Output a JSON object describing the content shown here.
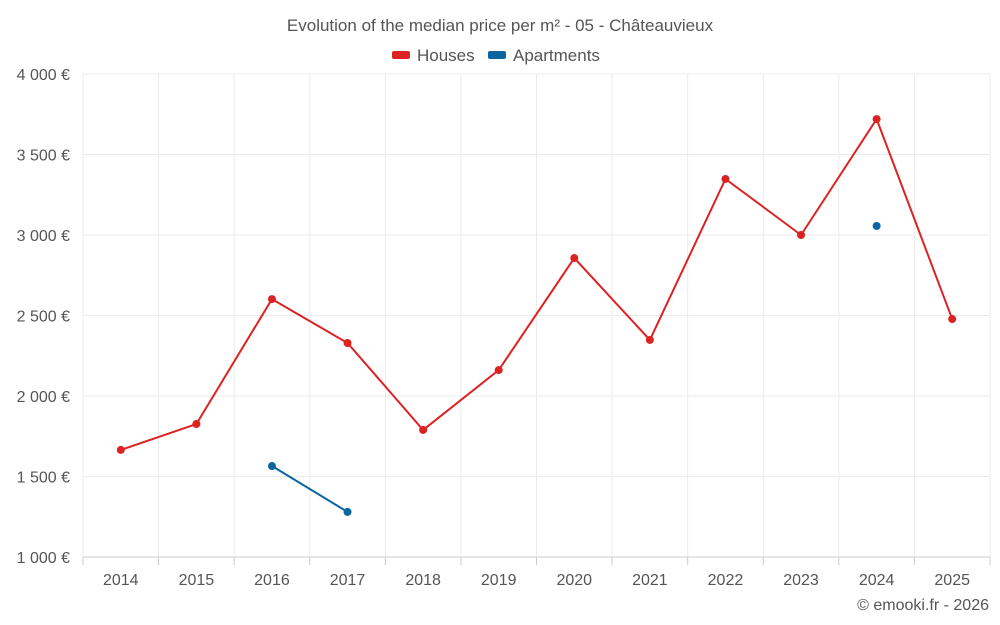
{
  "chart_data": {
    "type": "line",
    "title": "Evolution of the median price per m² - 05 - Châteauvieux",
    "xlabel": "",
    "ylabel": "",
    "categories": [
      "2014",
      "2015",
      "2016",
      "2017",
      "2018",
      "2019",
      "2020",
      "2021",
      "2022",
      "2023",
      "2024",
      "2025"
    ],
    "ylim": [
      1000,
      4000
    ],
    "yticks": [
      1000,
      1500,
      2000,
      2500,
      3000,
      3500,
      4000
    ],
    "ytick_labels": [
      "1 000 €",
      "1 500 €",
      "2 000 €",
      "2 500 €",
      "3 000 €",
      "3 500 €",
      "4 000 €"
    ],
    "grid": true,
    "legend_position": "top-center",
    "series": [
      {
        "name": "Houses",
        "color": "#dd2222",
        "values": [
          1665,
          1826,
          2602,
          2329,
          1789,
          2161,
          2857,
          2348,
          3348,
          3000,
          3720,
          2478
        ]
      },
      {
        "name": "Apartments",
        "color": "#0a66a0",
        "values": [
          null,
          null,
          1565,
          1280,
          null,
          null,
          null,
          null,
          null,
          null,
          3056,
          null
        ]
      }
    ],
    "credit": "© emooki.fr - 2026"
  }
}
